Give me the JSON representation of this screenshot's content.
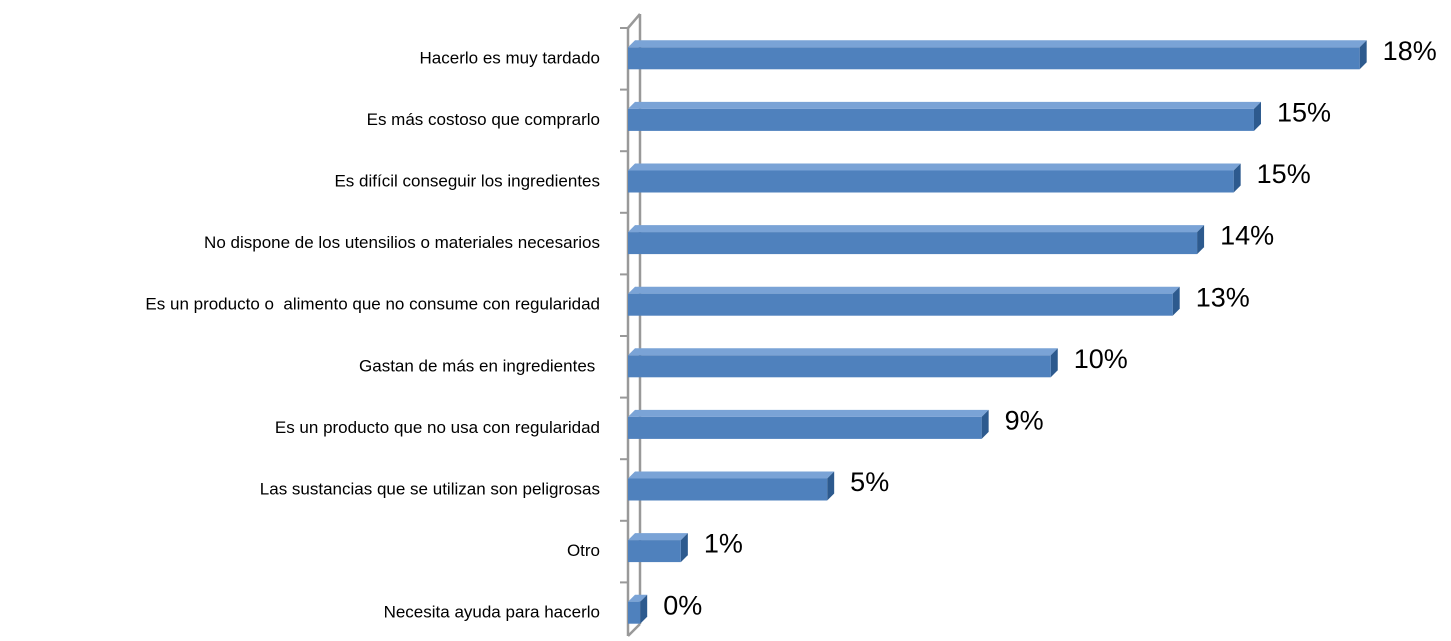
{
  "chart_data": {
    "type": "bar",
    "orientation": "horizontal",
    "categories": [
      "Hacerlo es muy tardado",
      "Es más costoso que comprarlo",
      "Es difícil conseguir los ingredientes",
      "No dispone de los utensilios o materiales necesarios",
      "Es un producto o  alimento que no consume con regularidad",
      "Gastan de más en ingredientes ",
      "Es un producto que no usa con regularidad",
      "Las sustancias que se utilizan son peligrosas",
      "Otro",
      "Necesita ayuda para hacerlo"
    ],
    "values": [
      18,
      15.4,
      14.9,
      14,
      13.4,
      10.4,
      8.7,
      4.9,
      1.3,
      0.3
    ],
    "value_labels": [
      "18%",
      "15%",
      "15%",
      "14%",
      "13%",
      "10%",
      "9%",
      "5%",
      "1%",
      "0%"
    ],
    "color": "#4f81bd",
    "xlim": [
      0,
      18.5
    ]
  }
}
